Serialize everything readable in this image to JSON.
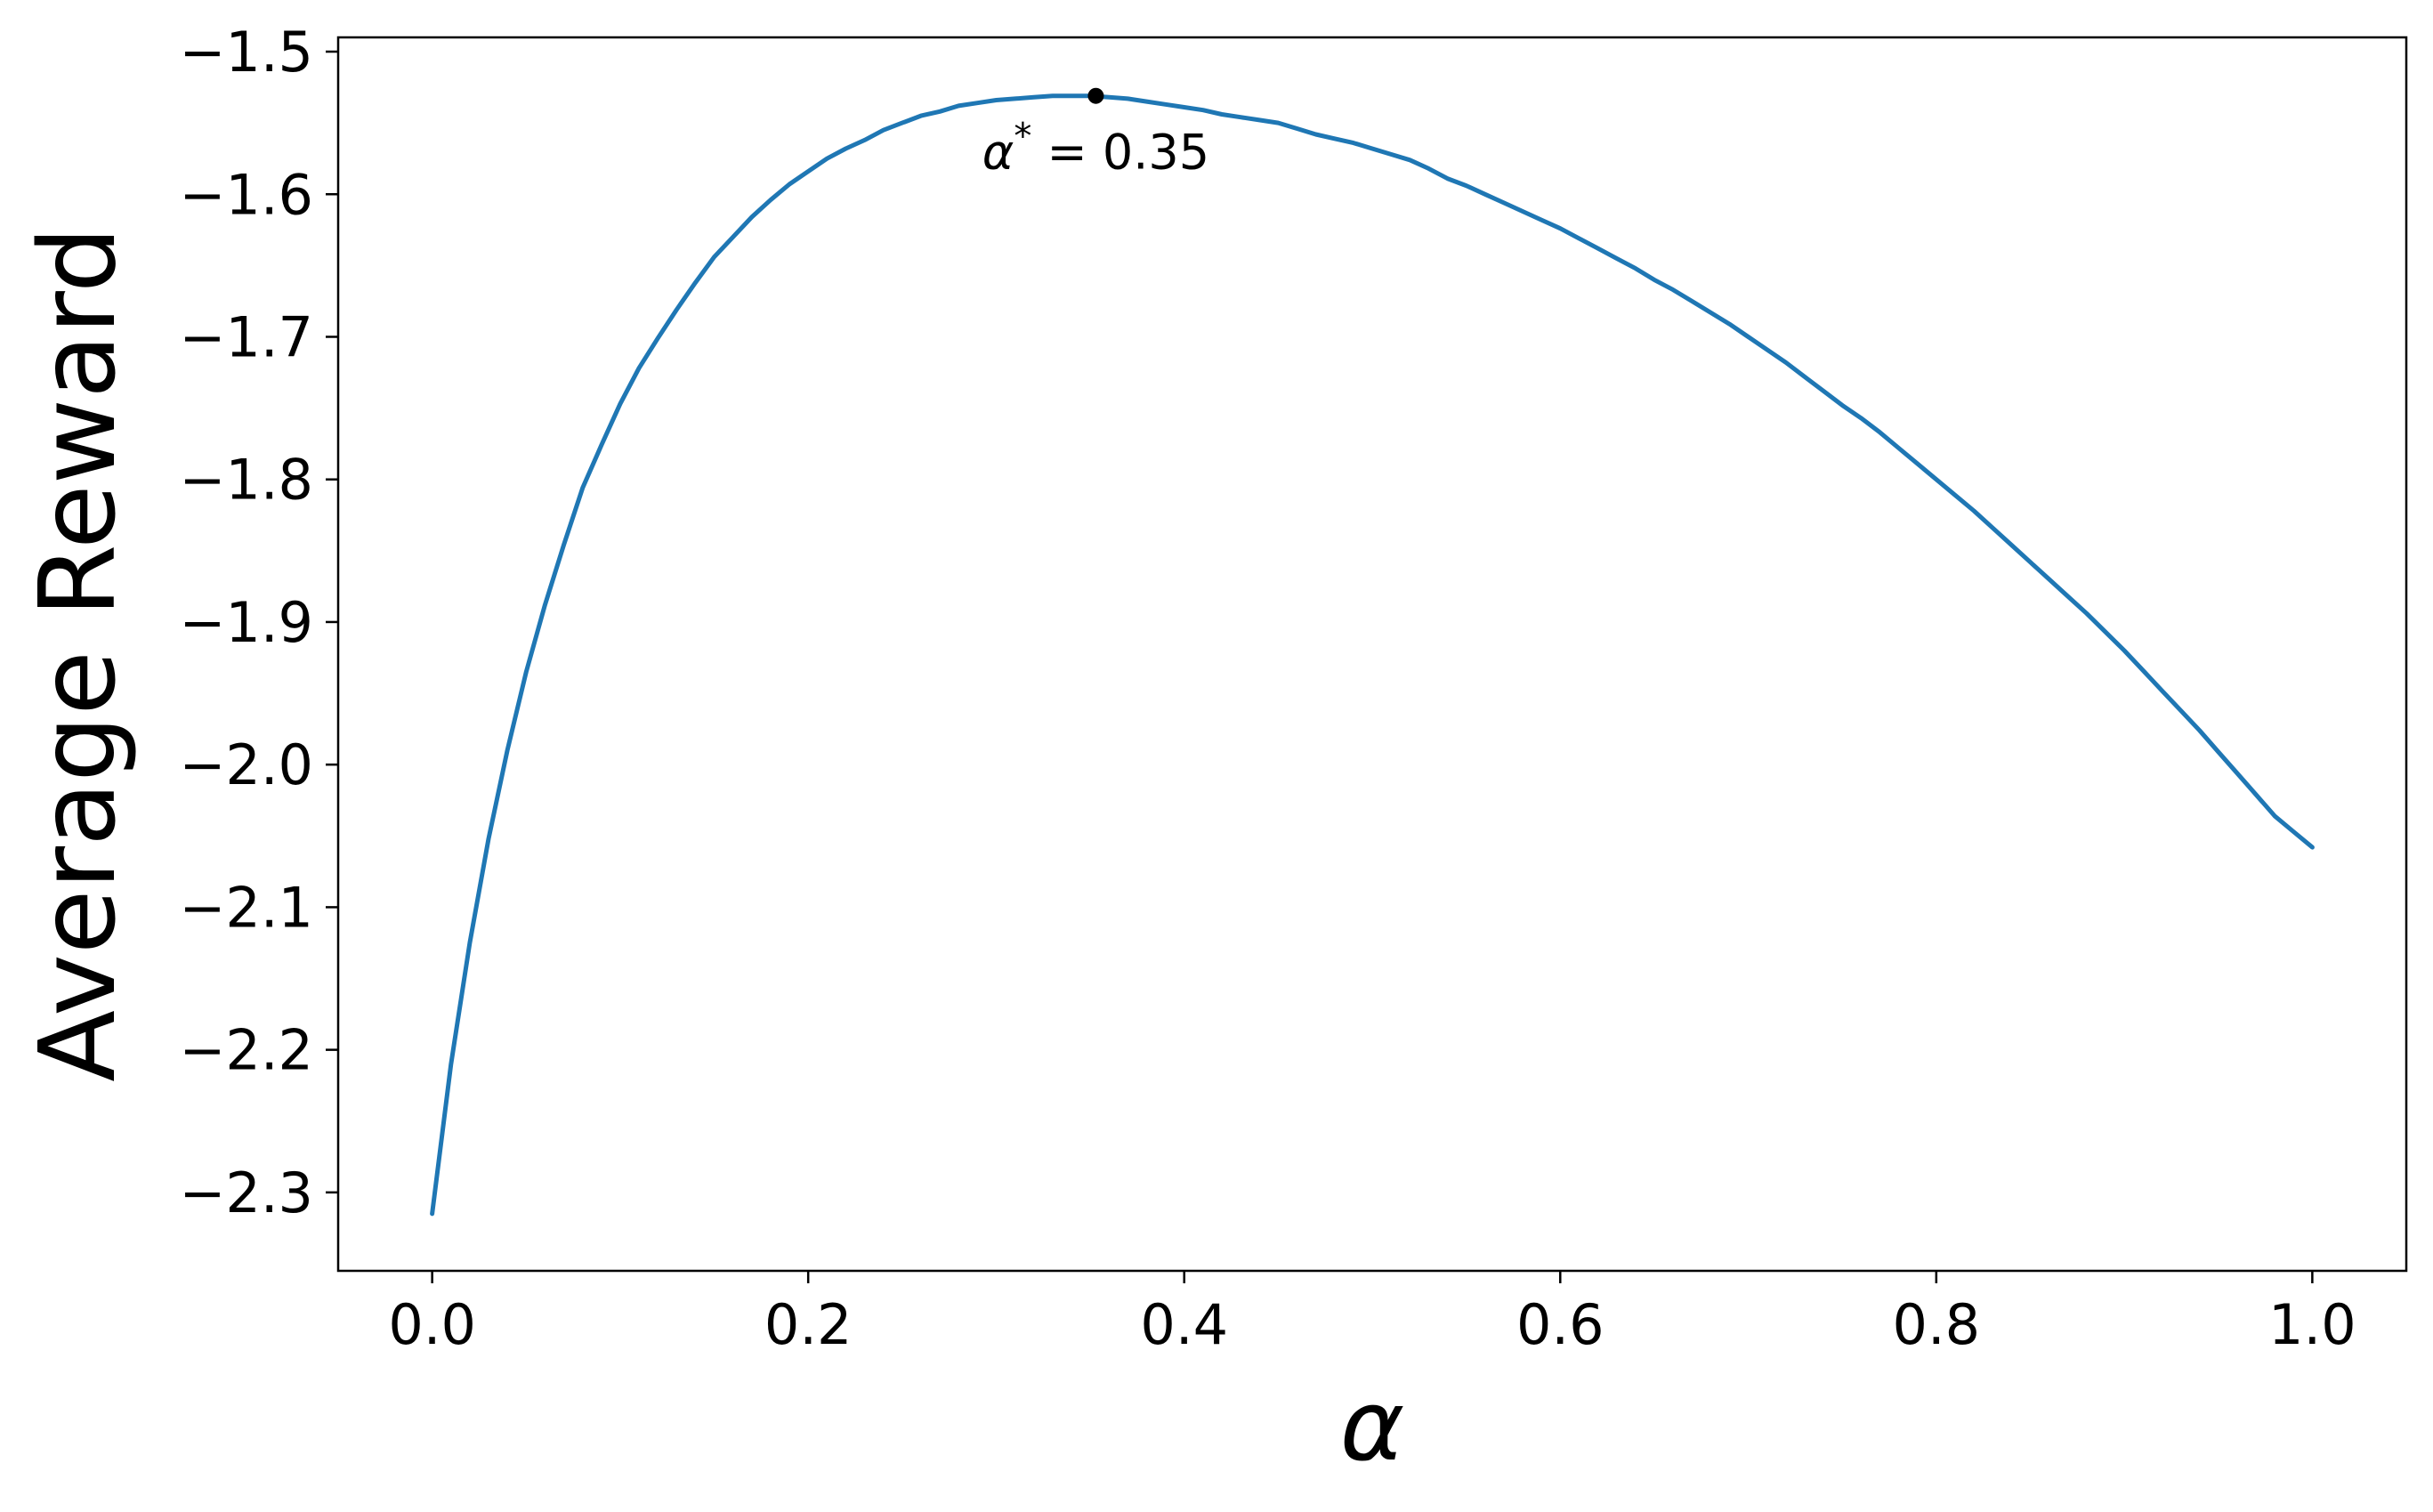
{
  "chart_data": {
    "type": "line",
    "xlabel": "α",
    "ylabel": "Average Reward",
    "xlim": [
      -0.05,
      1.05
    ],
    "ylim": [
      -2.355,
      -1.49
    ],
    "xticks": [
      0.0,
      0.2,
      0.4,
      0.6,
      0.8,
      1.0
    ],
    "xtick_labels": [
      "0.0",
      "0.2",
      "0.4",
      "0.6",
      "0.8",
      "1.0"
    ],
    "yticks": [
      -1.5,
      -1.6,
      -1.7,
      -1.8,
      -1.9,
      -2.0,
      -2.1,
      -2.2,
      -2.3
    ],
    "ytick_labels": [
      "−1.5",
      "−1.6",
      "−1.7",
      "−1.8",
      "−1.9",
      "−2.0",
      "−2.1",
      "−2.2",
      "−2.3"
    ],
    "grid": false,
    "series": [
      {
        "color": "#1f77b4",
        "x": [
          0.0,
          0.01,
          0.02,
          0.03,
          0.04,
          0.05,
          0.06,
          0.07,
          0.08,
          0.09,
          0.1,
          0.11,
          0.12,
          0.13,
          0.14,
          0.15,
          0.16,
          0.17,
          0.18,
          0.19,
          0.2,
          0.21,
          0.22,
          0.23,
          0.24,
          0.25,
          0.26,
          0.27,
          0.28,
          0.29,
          0.3,
          0.31,
          0.32,
          0.33,
          0.34,
          0.35,
          0.36,
          0.37,
          0.38,
          0.39,
          0.4,
          0.41,
          0.42,
          0.43,
          0.44,
          0.45,
          0.46,
          0.47,
          0.48,
          0.49,
          0.5,
          0.51,
          0.52,
          0.53,
          0.54,
          0.55,
          0.56,
          0.57,
          0.58,
          0.59,
          0.6,
          0.61,
          0.62,
          0.63,
          0.64,
          0.65,
          0.66,
          0.67,
          0.68,
          0.69,
          0.7,
          0.71,
          0.72,
          0.73,
          0.74,
          0.75,
          0.76,
          0.77,
          0.78,
          0.79,
          0.8,
          0.81,
          0.82,
          0.83,
          0.84,
          0.85,
          0.86,
          0.87,
          0.88,
          0.89,
          0.9,
          0.91,
          0.92,
          0.93,
          0.94,
          0.95,
          0.96,
          0.97,
          0.98,
          0.99,
          1.0
        ],
        "y": [
          -2.315,
          -2.21,
          -2.125,
          -2.052,
          -1.99,
          -1.935,
          -1.888,
          -1.846,
          -1.806,
          -1.776,
          -1.747,
          -1.722,
          -1.701,
          -1.681,
          -1.662,
          -1.644,
          -1.63,
          -1.616,
          -1.604,
          -1.593,
          -1.584,
          -1.575,
          -1.568,
          -1.562,
          -1.555,
          -1.55,
          -1.545,
          -1.542,
          -1.538,
          -1.536,
          -1.534,
          -1.533,
          -1.532,
          -1.531,
          -1.531,
          -1.531,
          -1.532,
          -1.533,
          -1.535,
          -1.537,
          -1.539,
          -1.541,
          -1.544,
          -1.546,
          -1.548,
          -1.55,
          -1.554,
          -1.558,
          -1.561,
          -1.564,
          -1.568,
          -1.572,
          -1.576,
          -1.582,
          -1.589,
          -1.594,
          -1.6,
          -1.606,
          -1.612,
          -1.618,
          -1.624,
          -1.631,
          -1.638,
          -1.645,
          -1.652,
          -1.66,
          -1.667,
          -1.675,
          -1.683,
          -1.691,
          -1.7,
          -1.709,
          -1.718,
          -1.728,
          -1.738,
          -1.748,
          -1.757,
          -1.767,
          -1.778,
          -1.789,
          -1.8,
          -1.811,
          -1.822,
          -1.834,
          -1.846,
          -1.858,
          -1.87,
          -1.882,
          -1.894,
          -1.907,
          -1.92,
          -1.934,
          -1.948,
          -1.962,
          -1.976,
          -1.991,
          -2.006,
          -2.021,
          -2.036,
          -2.047,
          -2.058
        ]
      }
    ],
    "annotation": {
      "label_symbol": "α",
      "label_sup": "*",
      "label_rest": " = 0.35",
      "x": 0.353,
      "y": -1.531,
      "marker_color": "#000000"
    }
  }
}
